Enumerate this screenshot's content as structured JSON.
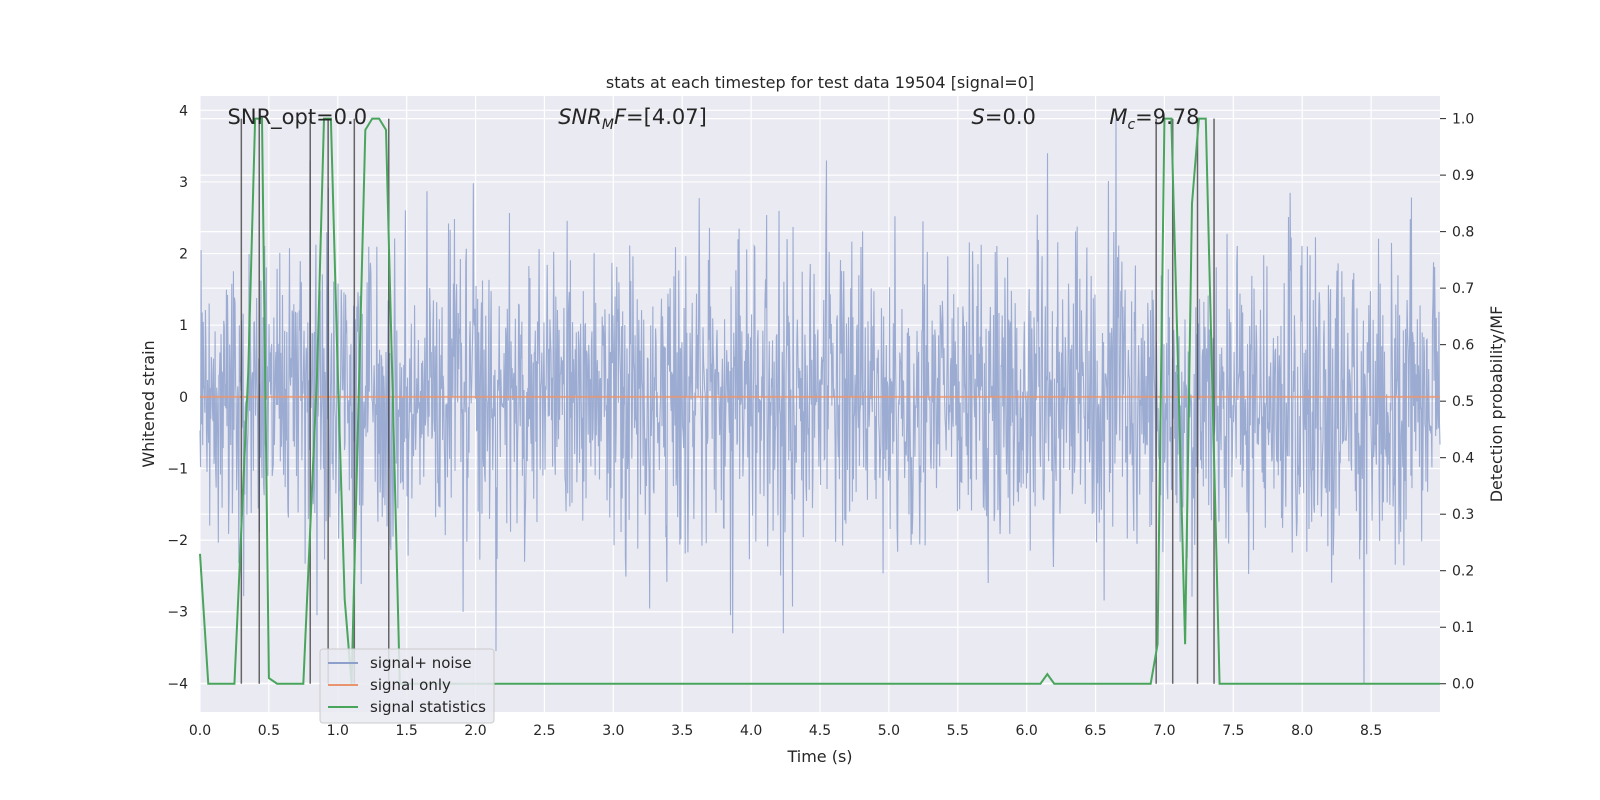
{
  "chart_data": {
    "type": "line",
    "title": "stats at each timestep for test data 19504 [signal=0]",
    "xlabel": "Time (s)",
    "ylabel": "Whitened strain",
    "ylabel_right": "Detection probability/MF",
    "xlim": [
      0.0,
      9.0
    ],
    "ylim": [
      -4.4,
      4.2
    ],
    "ylim_right": [
      -0.05,
      1.04
    ],
    "xticks": [
      "0.0",
      "0.5",
      "1.0",
      "1.5",
      "2.0",
      "2.5",
      "3.0",
      "3.5",
      "4.0",
      "4.5",
      "5.0",
      "5.5",
      "6.0",
      "6.5",
      "7.0",
      "7.5",
      "8.0",
      "8.5"
    ],
    "xtick_values": [
      0.0,
      0.5,
      1.0,
      1.5,
      2.0,
      2.5,
      3.0,
      3.5,
      4.0,
      4.5,
      5.0,
      5.5,
      6.0,
      6.5,
      7.0,
      7.5,
      8.0,
      8.5
    ],
    "yticks": [
      "−4",
      "−3",
      "−2",
      "−1",
      "0",
      "1",
      "2",
      "3",
      "4"
    ],
    "ytick_values": [
      -4,
      -3,
      -2,
      -1,
      0,
      1,
      2,
      3,
      4
    ],
    "yticks_right": [
      "0.0",
      "0.1",
      "0.2",
      "0.3",
      "0.4",
      "0.5",
      "0.6",
      "0.7",
      "0.8",
      "0.9",
      "1.0"
    ],
    "ytick_right_values": [
      0.0,
      0.1,
      0.2,
      0.3,
      0.4,
      0.5,
      0.6,
      0.7,
      0.8,
      0.9,
      1.0
    ],
    "annotations": [
      {
        "text": "SNR_opt=0.0",
        "x": 0.2
      },
      {
        "text": "SNR_MF=[4.07]",
        "x": 2.6
      },
      {
        "text": "S=0.0",
        "x": 5.6
      },
      {
        "text": "M_c=9.78",
        "x": 6.6
      }
    ],
    "legend": {
      "position": "lower-left",
      "entries": [
        {
          "label": "signal+ noise",
          "color": "#8da0cb"
        },
        {
          "label": "signal only",
          "color": "#e8956f"
        },
        {
          "label": "signal statistics",
          "color": "#4aa55c"
        }
      ]
    },
    "noise": {
      "name": "signal+ noise",
      "seed": 19504,
      "n_samples": 2300,
      "sigma": 1.0,
      "notable_peaks": [
        {
          "x": 0.85,
          "y": -3.05
        },
        {
          "x": 2.15,
          "y": -3.55
        },
        {
          "x": 3.85,
          "y": -3.05
        },
        {
          "x": 6.15,
          "y": 3.4
        },
        {
          "x": 6.65,
          "y": 3.9
        },
        {
          "x": 8.45,
          "y": -4.0
        }
      ]
    },
    "signal_only": {
      "name": "signal only",
      "value": 0.0
    },
    "vertical_lines_x": [
      0.3,
      0.43,
      0.8,
      0.93,
      1.12,
      1.37,
      6.94,
      7.06,
      7.24,
      7.36
    ],
    "series": [
      {
        "name": "signal statistics",
        "axis": "right",
        "x": [
          0.0,
          0.06,
          0.25,
          0.35,
          0.4,
          0.45,
          0.5,
          0.56,
          0.75,
          0.85,
          0.9,
          0.95,
          1.0,
          1.05,
          1.1,
          1.2,
          1.25,
          1.3,
          1.35,
          1.4,
          1.45,
          1.5,
          1.55,
          6.1,
          6.15,
          6.2,
          6.3,
          6.85,
          6.9,
          6.95,
          7.0,
          7.05,
          7.1,
          7.15,
          7.2,
          7.25,
          7.3,
          7.35,
          7.4,
          7.45,
          7.5,
          8.0,
          8.5,
          9.0
        ],
        "y": [
          0.23,
          0.0,
          0.0,
          0.55,
          1.0,
          1.0,
          0.01,
          0.0,
          0.0,
          0.55,
          1.0,
          1.0,
          0.55,
          0.15,
          0.0,
          0.98,
          1.0,
          1.0,
          0.98,
          0.5,
          0.0,
          0.0,
          0.0,
          0.0,
          0.017,
          0.0,
          0.0,
          0.0,
          0.0,
          0.07,
          1.0,
          1.0,
          0.55,
          0.07,
          0.85,
          1.0,
          1.0,
          0.5,
          0.0,
          0.0,
          0.0,
          0.0,
          0.0,
          0.0
        ]
      }
    ],
    "colors": {
      "plot_bg": "#eaeaf2",
      "grid": "#ffffff",
      "noise": "#8da0cb",
      "signal": "#e8956f",
      "stat": "#4aa55c",
      "vline": "#444444"
    }
  }
}
